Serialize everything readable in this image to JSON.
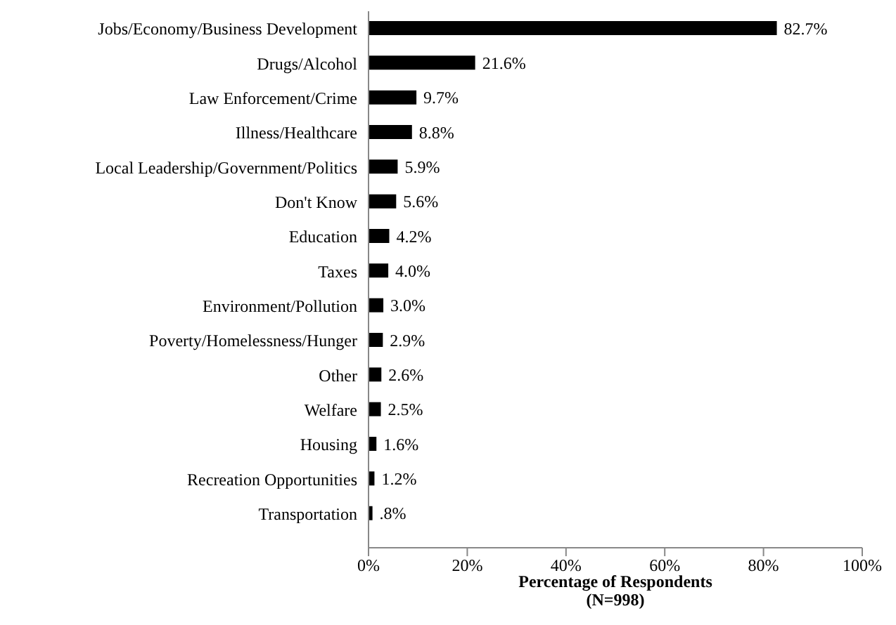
{
  "chart_data": {
    "type": "bar",
    "orientation": "horizontal",
    "xlabel": "Percentage of Respondents\n(N=998)",
    "categories": [
      "Jobs/Economy/Business Development",
      "Drugs/Alcohol",
      "Law Enforcement/Crime",
      "Illness/Healthcare",
      "Local Leadership/Government/Politics",
      "Don't Know",
      "Education",
      "Taxes",
      "Environment/Pollution",
      "Poverty/Homelessness/Hunger",
      "Other",
      "Welfare",
      "Housing",
      "Recreation Opportunities",
      "Transportation"
    ],
    "values": [
      82.7,
      21.6,
      9.7,
      8.8,
      5.9,
      5.6,
      4.2,
      4.0,
      3.0,
      2.9,
      2.6,
      2.5,
      1.6,
      1.2,
      0.8
    ],
    "value_labels": [
      "82.7%",
      "21.6%",
      "9.7%",
      "8.8%",
      "5.9%",
      "5.6%",
      "4.2%",
      "4.0%",
      "3.0%",
      "2.9%",
      "2.6%",
      "2.5%",
      "1.6%",
      "1.2%",
      ".8%"
    ],
    "color": "#000000",
    "xlim": [
      0,
      100
    ],
    "xticks": [
      {
        "value": 0,
        "label": "0%"
      },
      {
        "value": 20,
        "label": "20%"
      },
      {
        "value": 40,
        "label": "40%"
      },
      {
        "value": 60,
        "label": "60%"
      },
      {
        "value": 80,
        "label": "80%"
      },
      {
        "value": 100,
        "label": "100%"
      }
    ],
    "grid": false,
    "legend": false
  }
}
